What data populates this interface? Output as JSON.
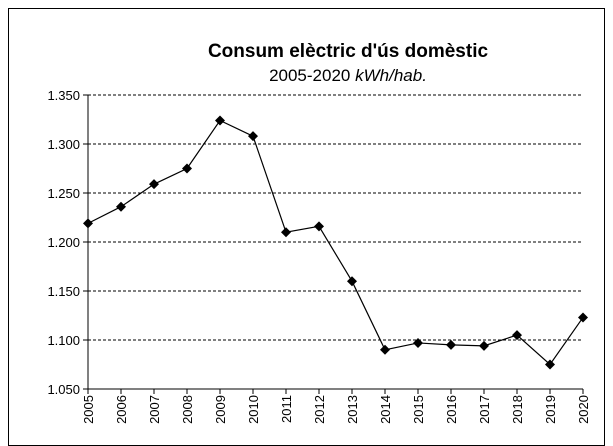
{
  "chart_data": {
    "type": "line",
    "title": "Consum elèctric d'ús domèstic",
    "subtitle": "2005-2020",
    "unit": "kWh/hab.",
    "categories": [
      "2005",
      "2006",
      "2007",
      "2008",
      "2009",
      "2010",
      "2011",
      "2012",
      "2013",
      "2014",
      "2015",
      "2016",
      "2017",
      "2018",
      "2019",
      "2020"
    ],
    "series": [
      {
        "color": "#000000",
        "values": [
          1219,
          1236,
          1259,
          1275,
          1324,
          1308,
          1210,
          1216,
          1160,
          1090,
          1097,
          1095,
          1094,
          1105,
          1075,
          1123
        ]
      }
    ],
    "ylim": [
      1050,
      1350
    ],
    "yticks": [
      {
        "value": 1050,
        "label": "1.050"
      },
      {
        "value": 1100,
        "label": "1.100"
      },
      {
        "value": 1150,
        "label": "1.150"
      },
      {
        "value": 1200,
        "label": "1.200"
      },
      {
        "value": 1250,
        "label": "1.250"
      },
      {
        "value": 1300,
        "label": "1.300"
      },
      {
        "value": 1350,
        "label": "1.350"
      }
    ],
    "grid": true
  }
}
